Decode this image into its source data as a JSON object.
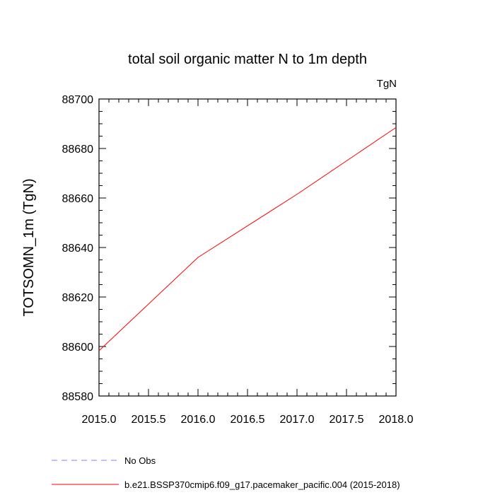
{
  "chart_data": {
    "type": "line",
    "title": "total soil organic matter N to 1m depth",
    "units_label": "TgN",
    "ylabel": "TOTSOMN_1m  (TgN)",
    "xlabel": "",
    "xlim": [
      2015.0,
      2018.0
    ],
    "ylim": [
      88580,
      88700
    ],
    "x_ticks": [
      2015.0,
      2015.5,
      2016.0,
      2016.5,
      2017.0,
      2017.5,
      2018.0
    ],
    "x_tick_labels": [
      "2015.0",
      "2015.5",
      "2016.0",
      "2016.5",
      "2017.0",
      "2017.5",
      "2018.0"
    ],
    "y_ticks": [
      88580,
      88600,
      88620,
      88640,
      88660,
      88680,
      88700
    ],
    "y_tick_labels": [
      "88580",
      "88600",
      "88620",
      "88640",
      "88660",
      "88680",
      "88700"
    ],
    "grid": false,
    "legend_placement": "bottom-left",
    "series": [
      {
        "name": "No Obs",
        "color": "#8080ff",
        "dash": "dashed",
        "x": [],
        "y": []
      },
      {
        "name": "b.e21.BSSP370cmip6.f09_g17.pacemaker_pacific.004 (2015-2018)",
        "color": "#ff0000",
        "dash": "solid",
        "x": [
          2015.0,
          2016.0,
          2017.0,
          2018.0
        ],
        "y": [
          88598.3,
          88636.0,
          88661.5,
          88688.5
        ]
      }
    ]
  }
}
